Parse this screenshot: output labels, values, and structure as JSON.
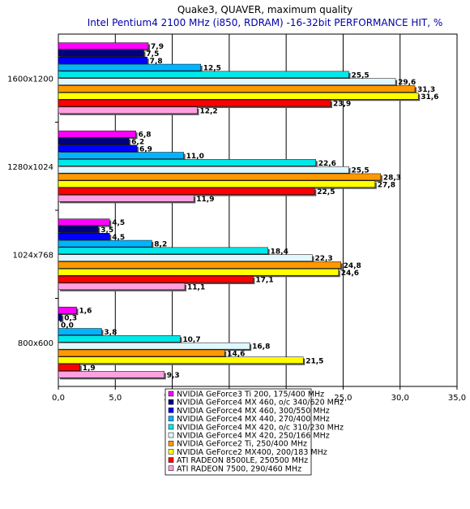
{
  "chart_data": {
    "type": "bar",
    "orientation": "horizontal",
    "title": "Quake3, QUAVER, maximum quality",
    "subtitle": "Intel Pentium4 2100 MHz (i850, RDRAM) -16-32bit PERFORMANCE HIT, %",
    "xlim": [
      0,
      35
    ],
    "x_ticks": [
      "0,0",
      "5,0",
      "10,0",
      "15,0",
      "20,0",
      "25,0",
      "30,0",
      "35,0"
    ],
    "grid": true,
    "legend_position": "bottom",
    "categories": [
      "1600x1200",
      "1280x1024",
      "1024x768",
      "800x600"
    ],
    "series": [
      {
        "name": "NVIDIA GeForce3 Ti 200, 175/400 MHz",
        "color": "#ff00ff",
        "values": [
          7.9,
          6.8,
          4.5,
          1.6
        ],
        "labels": [
          "7,9",
          "6,8",
          "4,5",
          "1,6"
        ]
      },
      {
        "name": "NVIDIA GeForce4 MX 460, o/c 340/620 MHz",
        "color": "#000080",
        "values": [
          7.5,
          6.2,
          3.5,
          0.3
        ],
        "labels": [
          "7,5",
          "6,2",
          "3,5",
          "0,3"
        ]
      },
      {
        "name": "NVIDIA GeForce4 MX 460, 300/550 MHz",
        "color": "#0000ff",
        "values": [
          7.8,
          6.9,
          4.5,
          0.0
        ],
        "labels": [
          "7,8",
          "6,9",
          "4,5",
          "0,0"
        ]
      },
      {
        "name": "NVIDIA GeForce4 MX 440, 270/400 MHz",
        "color": "#00b4ff",
        "values": [
          12.5,
          11.0,
          8.2,
          3.8
        ],
        "labels": [
          "12,5",
          "11,0",
          "8,2",
          "3,8"
        ]
      },
      {
        "name": "NVIDIA GeForce4 MX 420, o/c 310/230 MHz",
        "color": "#00e8e8",
        "values": [
          25.5,
          22.6,
          18.4,
          10.7
        ],
        "labels": [
          "25,5",
          "22,6",
          "18,4",
          "10,7"
        ]
      },
      {
        "name": "NVIDIA GeForce4 MX 420, 250/166 MHz",
        "color": "#e0f8ff",
        "values": [
          29.6,
          25.5,
          22.3,
          16.8
        ],
        "labels": [
          "29,6",
          "25,5",
          "22,3",
          "16,8"
        ]
      },
      {
        "name": "NVIDIA GeForce2 Ti, 250/400 MHz",
        "color": "#ff9900",
        "values": [
          31.3,
          28.3,
          24.8,
          14.6
        ],
        "labels": [
          "31,3",
          "28,3",
          "24,8",
          "14,6"
        ]
      },
      {
        "name": "NVIDIA GeForce2 MX400, 200/183 MHz",
        "color": "#ffff00",
        "values": [
          31.6,
          27.8,
          24.6,
          21.5
        ],
        "labels": [
          "31,6",
          "27,8",
          "24,6",
          "21,5"
        ]
      },
      {
        "name": "ATI RADEON 8500LE, 250500 MHz",
        "color": "#ff0000",
        "values": [
          23.9,
          22.5,
          17.1,
          1.9
        ],
        "labels": [
          "23,9",
          "22,5",
          "17,1",
          "1,9"
        ]
      },
      {
        "name": "ATI RADEON 7500, 290/460 MHz",
        "color": "#ffa0e0",
        "values": [
          12.2,
          11.9,
          11.1,
          9.3
        ],
        "labels": [
          "12,2",
          "11,9",
          "11,1",
          "9,3"
        ]
      }
    ]
  }
}
